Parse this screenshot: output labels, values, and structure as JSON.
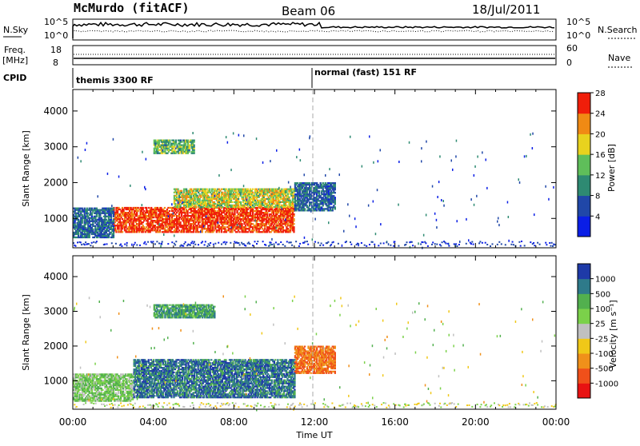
{
  "header": {
    "station": "McMurdo (fitACF)",
    "beam": "Beam 06",
    "date": "18/Jul/2011"
  },
  "noise_panel": {
    "left_label": "N.Sky",
    "right_label": "N.Search",
    "y_top": "10^5",
    "y_bottom": "10^0",
    "y_top_right": "10^5",
    "y_bottom_right": "10^0"
  },
  "freq_panel": {
    "left_label_1": "Freq.",
    "left_label_2": "[MHz]",
    "left_top": "18",
    "left_bottom": "8",
    "right_label": "Nave",
    "right_top": "60",
    "right_bottom": "0"
  },
  "cpid": {
    "label": "CPID",
    "modes": [
      "themis 3300 RF",
      "normal (fast) 151 RF"
    ]
  },
  "axis": {
    "xlabel": "Time UT",
    "x_ticks": [
      "00:00",
      "04:00",
      "08:00",
      "12:00",
      "16:00",
      "20:00",
      "00:00"
    ],
    "ylabel": "Slant Range [km]",
    "y_ticks": [
      "1000",
      "2000",
      "3000",
      "4000"
    ]
  },
  "power_bar": {
    "label": "Power [dB]",
    "ticks": [
      "4",
      "8",
      "12",
      "16",
      "20",
      "24",
      "28"
    ],
    "colors": [
      "#0a1ee6",
      "#2047a8",
      "#2e8a72",
      "#5fbe5a",
      "#e8d21e",
      "#f08a14",
      "#f01e0a"
    ]
  },
  "velocity_bar": {
    "label": "Velocity [m s⁻¹]",
    "ticks": [
      "1000",
      "500",
      "100",
      "25",
      "-25",
      "-100",
      "-500",
      "-1000"
    ],
    "colors": [
      "#1e3aa8",
      "#2e7a8a",
      "#52b04e",
      "#7bd14a",
      "#c0c0c0",
      "#f0c818",
      "#f0901a",
      "#f0501a",
      "#e81212"
    ]
  },
  "chart_data": {
    "type": "heatmap",
    "title": "McMurdo (fitACF)  Beam 06  18/Jul/2011",
    "xlabel": "Time UT",
    "ylabel": "Slant Range [km]",
    "xlim": [
      "00:00",
      "24:00"
    ],
    "ylim": [
      180,
      4600
    ],
    "panels": [
      {
        "name": "Power [dB]",
        "clim": [
          0,
          30
        ],
        "features": [
          {
            "time": [
              "02:00",
              "11:00"
            ],
            "range_km": [
              600,
              1300
            ],
            "value": "24-30"
          },
          {
            "time": [
              "05:00",
              "11:00"
            ],
            "range_km": [
              1300,
              1800
            ],
            "value": "12-24"
          },
          {
            "time": [
              "00:00",
              "02:00"
            ],
            "range_km": [
              450,
              1300
            ],
            "value": "4-12"
          },
          {
            "time": [
              "11:00",
              "13:00"
            ],
            "range_km": [
              1200,
              2000
            ],
            "value": "4-12"
          },
          {
            "time": [
              "04:00",
              "06:00"
            ],
            "range_km": [
              2800,
              3200
            ],
            "value": "8-20"
          }
        ]
      },
      {
        "name": "Velocity [m s^-1]",
        "clim": [
          -1000,
          1000
        ],
        "features": [
          {
            "time": [
              "00:00",
              "03:00"
            ],
            "range_km": [
              400,
              1200
            ],
            "value": "0 to 100"
          },
          {
            "time": [
              "03:00",
              "11:00"
            ],
            "range_km": [
              500,
              1600
            ],
            "value": "100 to 1000"
          },
          {
            "time": [
              "11:00",
              "13:00"
            ],
            "range_km": [
              1200,
              2000
            ],
            "value": "-100 to -500"
          },
          {
            "time": [
              "04:00",
              "07:00"
            ],
            "range_km": [
              2800,
              3200
            ],
            "value": "25 to 500"
          }
        ]
      }
    ],
    "legend": "right"
  }
}
